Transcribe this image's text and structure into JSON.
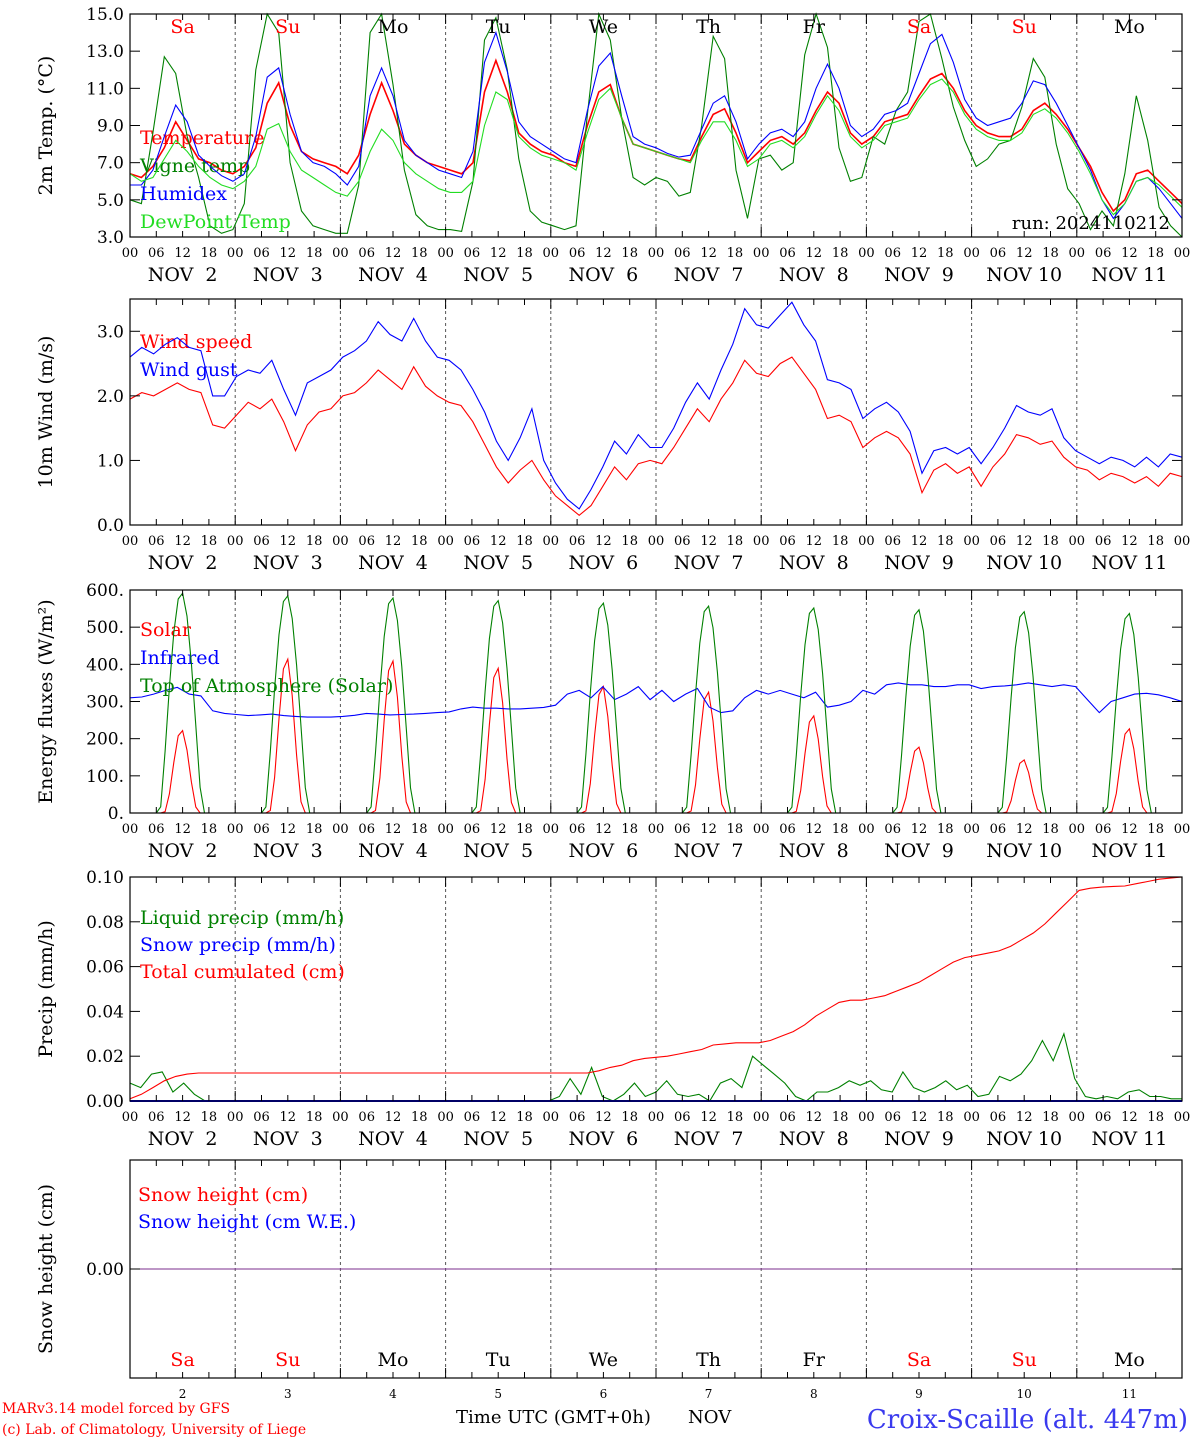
{
  "colors": {
    "red": "#ff0000",
    "green": "#008000",
    "blue": "#0000ff",
    "light_green": "#22dd22",
    "purple": "#7b2d8e"
  },
  "hour_labels": [
    "00",
    "06",
    "12",
    "18"
  ],
  "day_names": [
    {
      "label": "Sa",
      "color": "#ff0000"
    },
    {
      "label": "Su",
      "color": "#ff0000"
    },
    {
      "label": "Mo",
      "color": "#000000"
    },
    {
      "label": "Tu",
      "color": "#000000"
    },
    {
      "label": "We",
      "color": "#000000"
    },
    {
      "label": "Th",
      "color": "#000000"
    },
    {
      "label": "Fr",
      "color": "#000000"
    },
    {
      "label": "Sa",
      "color": "#ff0000"
    },
    {
      "label": "Su",
      "color": "#ff0000"
    },
    {
      "label": "Mo",
      "color": "#000000"
    }
  ],
  "date_labels": [
    "NOV  2",
    "NOV  3",
    "NOV  4",
    "NOV  5",
    "NOV  6",
    "NOV  7",
    "NOV  8",
    "NOV  9",
    "NOV 10",
    "NOV 11"
  ],
  "day_numbers": [
    "2",
    "3",
    "4",
    "5",
    "6",
    "7",
    "8",
    "9",
    "10",
    "11"
  ],
  "footer": {
    "model": "MARv3.14 model forced by GFS",
    "lab": "(c) Lab. of Climatology, University of Liege",
    "axis_title": "Time UTC (GMT+0h)",
    "month": "NOV",
    "station": "Croix-Scaille (alt. 447m)"
  },
  "chart_data": [
    {
      "type": "line",
      "ylabel": "2m Temp. (°C)",
      "ylim": [
        3.0,
        15.0
      ],
      "yticks": [
        "3.0",
        "5.0",
        "7.0",
        "9.0",
        "11.0",
        "13.0",
        "15.0"
      ],
      "run_label": "run: 2024110212",
      "series": [
        {
          "name": "Temperature",
          "color": "#ff0000",
          "values": [
            6.4,
            6.2,
            6.8,
            7.8,
            9.2,
            8.2,
            7.2,
            7.0,
            6.6,
            6.4,
            6.8,
            7.8,
            10.2,
            11.3,
            9.0,
            7.6,
            7.2,
            7.0,
            6.8,
            6.4,
            7.4,
            9.6,
            11.3,
            9.8,
            8.0,
            7.4,
            7.0,
            6.8,
            6.6,
            6.4,
            7.0,
            10.8,
            12.5,
            10.8,
            8.6,
            8.0,
            7.6,
            7.4,
            7.0,
            6.8,
            9.0,
            10.8,
            11.2,
            9.4,
            8.0,
            7.8,
            7.6,
            7.4,
            7.2,
            7.1,
            8.4,
            9.6,
            9.9,
            8.6,
            7.0,
            7.6,
            8.2,
            8.4,
            8.0,
            8.6,
            9.8,
            10.8,
            10.2,
            8.6,
            8.0,
            8.4,
            9.2,
            9.4,
            9.6,
            10.6,
            11.5,
            11.8,
            11.0,
            9.8,
            9.0,
            8.6,
            8.4,
            8.4,
            8.8,
            9.8,
            10.2,
            9.6,
            8.8,
            7.8,
            6.8,
            5.4,
            4.4,
            5.0,
            6.4,
            6.6,
            6.0,
            5.4,
            4.8
          ]
        },
        {
          "name": "Vigne temp",
          "color": "#008000",
          "values": [
            5.0,
            4.8,
            8.6,
            12.7,
            11.8,
            8.4,
            6.2,
            3.6,
            3.2,
            3.4,
            4.8,
            12.0,
            15.0,
            14.0,
            7.0,
            4.4,
            3.6,
            3.4,
            3.2,
            3.2,
            5.8,
            14.0,
            15.0,
            11.2,
            6.6,
            4.2,
            3.6,
            3.4,
            3.4,
            3.3,
            6.0,
            13.6,
            14.8,
            12.0,
            7.2,
            4.4,
            3.8,
            3.6,
            3.4,
            3.6,
            9.6,
            15.0,
            13.6,
            9.4,
            6.2,
            5.8,
            6.2,
            6.0,
            5.2,
            5.4,
            9.0,
            13.8,
            12.6,
            6.6,
            4.0,
            7.2,
            7.4,
            6.6,
            7.0,
            12.8,
            15.0,
            13.2,
            7.8,
            6.0,
            6.2,
            8.4,
            8.0,
            9.8,
            10.8,
            14.6,
            15.0,
            12.6,
            10.0,
            8.2,
            6.8,
            7.2,
            8.0,
            8.2,
            10.0,
            12.6,
            11.6,
            8.0,
            5.6,
            4.8,
            3.4,
            4.4,
            3.6,
            6.4,
            10.6,
            8.2,
            4.6,
            3.6,
            3.0
          ]
        },
        {
          "name": "Humidex",
          "color": "#0000ff",
          "values": [
            5.8,
            5.8,
            6.6,
            8.4,
            10.1,
            9.2,
            7.4,
            6.8,
            6.3,
            6.0,
            6.4,
            8.4,
            11.6,
            12.1,
            9.6,
            7.6,
            7.0,
            6.8,
            6.4,
            5.8,
            6.8,
            10.6,
            12.1,
            10.6,
            8.2,
            7.4,
            7.0,
            6.6,
            6.4,
            6.2,
            7.6,
            12.4,
            14.0,
            11.9,
            9.2,
            8.4,
            8.0,
            7.6,
            7.2,
            7.0,
            9.8,
            12.2,
            12.9,
            10.6,
            8.4,
            8.0,
            7.8,
            7.5,
            7.3,
            7.4,
            8.8,
            10.2,
            10.6,
            9.2,
            7.2,
            8.0,
            8.6,
            8.8,
            8.4,
            9.2,
            11.0,
            12.3,
            11.0,
            9.0,
            8.4,
            8.8,
            9.6,
            9.8,
            10.2,
            11.8,
            13.4,
            13.9,
            12.4,
            10.4,
            9.4,
            9.0,
            9.2,
            9.4,
            10.2,
            11.4,
            11.2,
            10.2,
            9.0,
            7.8,
            6.6,
            5.0,
            4.0,
            4.8,
            6.0,
            6.2,
            5.6,
            4.8,
            4.0
          ]
        },
        {
          "name": "DewPoint Temp",
          "color": "#22dd22",
          "values": [
            6.4,
            6.0,
            6.2,
            7.2,
            8.2,
            7.6,
            6.8,
            6.2,
            5.8,
            5.6,
            6.0,
            6.8,
            8.8,
            9.1,
            7.6,
            6.6,
            6.2,
            5.8,
            5.4,
            5.2,
            6.0,
            7.6,
            8.8,
            8.2,
            7.0,
            6.4,
            6.0,
            5.6,
            5.4,
            5.4,
            6.0,
            9.0,
            10.8,
            10.4,
            8.4,
            7.8,
            7.4,
            7.2,
            7.0,
            6.6,
            8.6,
            10.4,
            11.0,
            9.4,
            8.0,
            7.8,
            7.6,
            7.4,
            7.2,
            7.0,
            8.2,
            9.2,
            9.2,
            8.2,
            6.8,
            7.2,
            8.0,
            8.2,
            7.8,
            8.4,
            9.6,
            10.6,
            9.8,
            8.4,
            7.8,
            8.2,
            9.0,
            9.2,
            9.4,
            10.4,
            11.2,
            11.5,
            10.8,
            9.6,
            8.8,
            8.4,
            8.2,
            8.2,
            8.6,
            9.6,
            9.9,
            9.4,
            8.6,
            7.6,
            6.4,
            5.0,
            4.2,
            4.8,
            6.0,
            6.2,
            5.8,
            5.2,
            4.6
          ]
        }
      ]
    },
    {
      "type": "line",
      "ylabel": "10m Wind (m/s)",
      "ylim": [
        0.0,
        3.5
      ],
      "yticks": [
        "0.0",
        "1.0",
        "2.0",
        "3.0"
      ],
      "series": [
        {
          "name": "Wind speed",
          "color": "#ff0000",
          "values": [
            1.95,
            2.05,
            2.0,
            2.1,
            2.2,
            2.1,
            2.05,
            1.55,
            1.5,
            1.7,
            1.9,
            1.8,
            1.95,
            1.6,
            1.15,
            1.55,
            1.75,
            1.8,
            2.0,
            2.05,
            2.2,
            2.4,
            2.25,
            2.1,
            2.45,
            2.15,
            2.0,
            1.9,
            1.85,
            1.6,
            1.25,
            0.9,
            0.65,
            0.85,
            1.0,
            0.7,
            0.45,
            0.3,
            0.15,
            0.3,
            0.6,
            0.9,
            0.7,
            0.95,
            1.0,
            0.95,
            1.2,
            1.5,
            1.8,
            1.6,
            1.95,
            2.2,
            2.55,
            2.35,
            2.3,
            2.5,
            2.6,
            2.35,
            2.1,
            1.65,
            1.7,
            1.6,
            1.2,
            1.35,
            1.45,
            1.35,
            1.1,
            0.5,
            0.85,
            0.95,
            0.8,
            0.9,
            0.6,
            0.9,
            1.1,
            1.4,
            1.35,
            1.25,
            1.3,
            1.05,
            0.9,
            0.85,
            0.7,
            0.8,
            0.75,
            0.65,
            0.75,
            0.6,
            0.8,
            0.75
          ]
        },
        {
          "name": "Wind gust",
          "color": "#0000ff",
          "values": [
            2.6,
            2.75,
            2.65,
            2.8,
            2.9,
            2.75,
            2.7,
            2.0,
            2.0,
            2.3,
            2.4,
            2.35,
            2.55,
            2.1,
            1.7,
            2.2,
            2.3,
            2.4,
            2.6,
            2.7,
            2.85,
            3.15,
            2.95,
            2.85,
            3.2,
            2.85,
            2.6,
            2.55,
            2.4,
            2.1,
            1.75,
            1.3,
            1.0,
            1.35,
            1.8,
            1.0,
            0.65,
            0.4,
            0.25,
            0.55,
            0.9,
            1.3,
            1.1,
            1.4,
            1.2,
            1.2,
            1.5,
            1.9,
            2.2,
            1.95,
            2.4,
            2.8,
            3.35,
            3.1,
            3.05,
            3.25,
            3.45,
            3.1,
            2.85,
            2.25,
            2.2,
            2.1,
            1.65,
            1.8,
            1.9,
            1.75,
            1.45,
            0.8,
            1.15,
            1.2,
            1.1,
            1.2,
            0.95,
            1.2,
            1.5,
            1.85,
            1.75,
            1.7,
            1.8,
            1.35,
            1.15,
            1.05,
            0.95,
            1.05,
            1.0,
            0.9,
            1.05,
            0.9,
            1.1,
            1.05
          ]
        }
      ]
    },
    {
      "type": "line",
      "ylabel": "Energy fluxes (W/m²)",
      "ylim": [
        0,
        600
      ],
      "yticks": [
        "0.",
        "100.",
        "200.",
        "300.",
        "400.",
        "500.",
        "600."
      ],
      "series": [
        {
          "name": "Solar",
          "color": "#ff0000",
          "peaks": [
            225,
            420,
            415,
            395,
            345,
            330,
            265,
            180,
            145,
            230
          ]
        },
        {
          "name": "Infrared",
          "color": "#0000ff",
          "values": [
            310,
            312,
            320,
            330,
            338,
            320,
            315,
            275,
            268,
            265,
            262,
            264,
            266,
            262,
            260,
            258,
            258,
            258,
            260,
            263,
            268,
            266,
            264,
            265,
            266,
            268,
            270,
            272,
            280,
            285,
            282,
            282,
            280,
            280,
            282,
            284,
            290,
            320,
            330,
            310,
            340,
            305,
            320,
            340,
            305,
            330,
            300,
            320,
            335,
            285,
            270,
            275,
            310,
            330,
            320,
            330,
            320,
            310,
            325,
            285,
            290,
            300,
            330,
            320,
            345,
            350,
            345,
            345,
            340,
            340,
            345,
            345,
            335,
            340,
            342,
            345,
            350,
            345,
            340,
            345,
            340,
            305,
            270,
            300,
            310,
            320,
            322,
            318,
            310,
            300
          ]
        },
        {
          "name": "Top of Atmosphere (Solar)",
          "color": "#008000",
          "peaks": [
            595,
            588,
            582,
            575,
            568,
            560,
            555,
            550,
            545,
            540
          ]
        }
      ]
    },
    {
      "type": "line",
      "ylabel": "Precip (mm/h)",
      "ylim": [
        0.0,
        0.1
      ],
      "yticks": [
        "0.00",
        "0.02",
        "0.04",
        "0.06",
        "0.08",
        "0.10"
      ],
      "series": [
        {
          "name": "Liquid precip (mm/h)",
          "color": "#008000",
          "values": [
            0.008,
            0.006,
            0.012,
            0.013,
            0.004,
            0.008,
            0.003,
            0,
            0,
            0,
            0,
            0,
            0,
            0,
            0,
            0,
            0,
            0,
            0,
            0,
            0,
            0,
            0,
            0,
            0,
            0,
            0,
            0,
            0,
            0,
            0,
            0,
            0,
            0,
            0,
            0,
            0,
            0,
            0,
            0,
            0.002,
            0.01,
            0.003,
            0.015,
            0.002,
            0.0,
            0.003,
            0.008,
            0.002,
            0.004,
            0.009,
            0.003,
            0.002,
            0.003,
            0.0,
            0.008,
            0.01,
            0.006,
            0.02,
            0.016,
            0.012,
            0.008,
            0.002,
            0.0,
            0.004,
            0.004,
            0.006,
            0.009,
            0.007,
            0.009,
            0.005,
            0.004,
            0.013,
            0.006,
            0.004,
            0.006,
            0.009,
            0.005,
            0.007,
            0.002,
            0.003,
            0.011,
            0.009,
            0.012,
            0.018,
            0.027,
            0.018,
            0.03,
            0.01,
            0.002,
            0.001,
            0.002,
            0.001,
            0.004,
            0.005,
            0.002,
            0.002,
            0.001,
            0.001
          ]
        },
        {
          "name": "Snow precip (mm/h)",
          "color": "#0000ff",
          "values": [
            0,
            0
          ]
        },
        {
          "name": "Total cumulated (cm)",
          "color": "#ff0000",
          "values": [
            0.001,
            0.003,
            0.006,
            0.009,
            0.011,
            0.012,
            0.0125,
            0.0125,
            0.0125,
            0.0125,
            0.0125,
            0.0125,
            0.0125,
            0.0125,
            0.0125,
            0.0125,
            0.0125,
            0.0125,
            0.0125,
            0.0125,
            0.0125,
            0.0125,
            0.0125,
            0.0125,
            0.0125,
            0.0125,
            0.0125,
            0.0125,
            0.0125,
            0.0125,
            0.0125,
            0.0125,
            0.0125,
            0.0125,
            0.0125,
            0.0125,
            0.0125,
            0.0125,
            0.0125,
            0.0125,
            0.0125,
            0.0135,
            0.015,
            0.016,
            0.018,
            0.019,
            0.0195,
            0.02,
            0.021,
            0.022,
            0.023,
            0.025,
            0.0255,
            0.026,
            0.026,
            0.026,
            0.027,
            0.029,
            0.031,
            0.034,
            0.038,
            0.041,
            0.044,
            0.045,
            0.045,
            0.046,
            0.047,
            0.049,
            0.051,
            0.053,
            0.056,
            0.059,
            0.062,
            0.064,
            0.065,
            0.066,
            0.067,
            0.069,
            0.072,
            0.075,
            0.079,
            0.084,
            0.089,
            0.094,
            0.095,
            0.0955,
            0.0958,
            0.096,
            0.097,
            0.098,
            0.099,
            0.0995,
            0.1
          ]
        }
      ]
    },
    {
      "type": "line",
      "ylabel": "Snow height (cm)",
      "yticks": [
        "0.00"
      ],
      "series": [
        {
          "name": "Snow height (cm)",
          "color": "#ff0000",
          "values": [
            0,
            0
          ]
        },
        {
          "name": "Snow height (cm W.E.)",
          "color": "#0000ff",
          "values": [
            0,
            0
          ]
        }
      ]
    }
  ]
}
